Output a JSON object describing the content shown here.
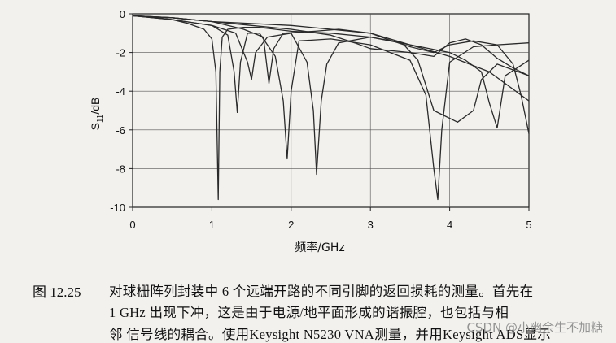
{
  "chart_data": {
    "type": "line",
    "xlabel": "频率/GHz",
    "ylabel": "S11/dB",
    "xlim": [
      0,
      5
    ],
    "ylim": [
      -10,
      0
    ],
    "x_ticks": [
      "0",
      "1",
      "2",
      "3",
      "4",
      "5"
    ],
    "y_ticks": [
      "0",
      "-2",
      "-4",
      "-6",
      "-8",
      "-10"
    ],
    "grid": true,
    "series": [
      {
        "x": [
          0,
          0.3,
          0.5,
          0.7,
          0.9,
          1.0,
          1.05,
          1.08,
          1.1,
          1.13,
          1.2,
          1.4,
          1.6,
          1.8,
          2.0,
          2.5,
          3.0,
          3.5,
          4.0,
          4.5,
          5.0
        ],
        "y": [
          -0.1,
          -0.2,
          -0.3,
          -0.5,
          -0.8,
          -1.3,
          -3,
          -9.6,
          -3,
          -1.2,
          -0.8,
          -0.7,
          -0.7,
          -0.8,
          -0.9,
          -1.0,
          -1.2,
          -1.6,
          -2.2,
          -3.0,
          -4.5
        ]
      },
      {
        "x": [
          0,
          0.5,
          1.0,
          1.2,
          1.28,
          1.32,
          1.36,
          1.45,
          1.6,
          1.8,
          1.9,
          1.95,
          2.0,
          2.1,
          2.5,
          3.0,
          3.5,
          3.7,
          3.8,
          3.85,
          3.9,
          4.0,
          4.3,
          4.6,
          5.0
        ],
        "y": [
          -0.1,
          -0.3,
          -0.6,
          -1.1,
          -3,
          -5.1,
          -2.5,
          -1.0,
          -1.0,
          -2.2,
          -4.5,
          -7.5,
          -4,
          -1.4,
          -1.3,
          -1.6,
          -2.4,
          -4.2,
          -8,
          -9.6,
          -6,
          -2.5,
          -1.7,
          -1.6,
          -1.5
        ]
      },
      {
        "x": [
          0,
          0.5,
          1.0,
          1.3,
          1.45,
          1.5,
          1.55,
          1.7,
          2.0,
          2.2,
          2.28,
          2.32,
          2.38,
          2.45,
          2.6,
          3.0,
          3.4,
          3.6,
          3.8,
          4.1,
          4.3,
          4.4,
          4.6,
          4.8,
          5.0
        ],
        "y": [
          -0.1,
          -0.3,
          -0.6,
          -1.0,
          -2.5,
          -3.4,
          -2,
          -1.2,
          -1.0,
          -2.5,
          -5,
          -8.3,
          -4.5,
          -2.6,
          -1.5,
          -1.2,
          -1.5,
          -2.4,
          -5,
          -5.6,
          -5.0,
          -3.4,
          -2.6,
          -2.9,
          -3.2
        ]
      },
      {
        "x": [
          0,
          0.5,
          1.0,
          1.4,
          1.65,
          1.72,
          1.78,
          1.9,
          2.3,
          2.6,
          3.0,
          3.5,
          4.0,
          4.2,
          4.4,
          4.5,
          4.6,
          4.7,
          5.0
        ],
        "y": [
          -0.1,
          -0.2,
          -0.4,
          -0.8,
          -1.2,
          -3.6,
          -1.8,
          -1.0,
          -0.9,
          -0.8,
          -1.0,
          -1.6,
          -2.0,
          -2.4,
          -3.0,
          -4.6,
          -5.9,
          -3.2,
          -2.4
        ]
      },
      {
        "x": [
          0,
          0.5,
          1.0,
          1.5,
          2.0,
          2.5,
          2.8,
          3.0,
          3.5,
          3.8,
          4.0,
          4.2,
          4.4,
          4.6,
          4.8,
          5.0
        ],
        "y": [
          -0.1,
          -0.2,
          -0.4,
          -0.6,
          -0.8,
          -1.1,
          -1.5,
          -1.8,
          -2.0,
          -2.2,
          -1.5,
          -1.3,
          -1.6,
          -2.3,
          -2.8,
          -3.2
        ]
      },
      {
        "x": [
          0,
          0.5,
          1.0,
          1.5,
          2.0,
          2.5,
          3.0,
          3.2,
          3.5,
          3.8,
          4.0,
          4.3,
          4.6,
          4.8,
          4.9,
          5.0
        ],
        "y": [
          -0.1,
          -0.2,
          -0.4,
          -0.5,
          -0.6,
          -0.8,
          -1.0,
          -1.3,
          -1.7,
          -2.0,
          -1.6,
          -1.4,
          -1.6,
          -2.6,
          -4.2,
          -6.2
        ]
      }
    ]
  },
  "caption": {
    "label": "图 12.25",
    "line1": "对球栅阵列封装中 6 个远端开路的不同引脚的返回损耗的测量。首先在",
    "line2": "1 GHz 出现下冲，这是由于电源/地平面形成的谐振腔，也包括与相",
    "line3": "邻 信号线的耦合。使用Keysight N5230 VNA测量，并用Keysight ADS显示"
  },
  "watermark": "CSDN @小幽余生不加糖"
}
